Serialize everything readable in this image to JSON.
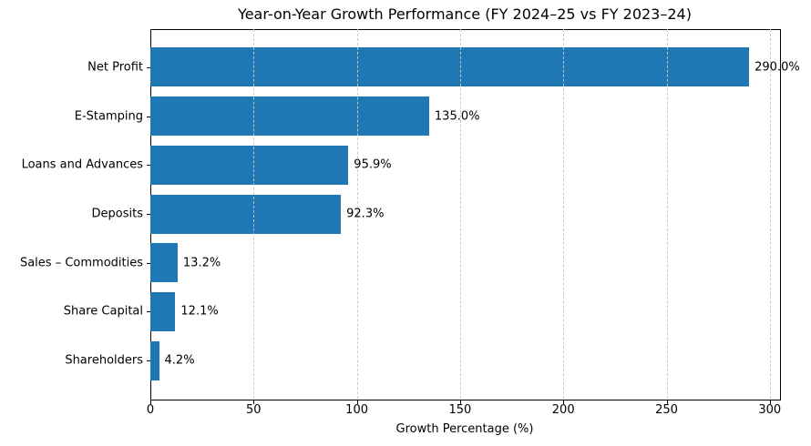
{
  "chart_data": {
    "type": "bar",
    "orientation": "horizontal",
    "title": "Year-on-Year Growth Performance (FY 2024–25 vs FY 2023–24)",
    "xlabel": "Growth Percentage (%)",
    "ylabel": "",
    "categories": [
      "Net Profit",
      "E-Stamping",
      "Loans and Advances",
      "Deposits",
      "Sales – Commodities",
      "Share Capital",
      "Shareholders"
    ],
    "values": [
      290.0,
      135.0,
      95.9,
      92.3,
      13.2,
      12.1,
      4.2
    ],
    "value_labels": [
      "290.0%",
      "135.0%",
      "95.9%",
      "92.3%",
      "13.2%",
      "12.1%",
      "4.2%"
    ],
    "x_ticks": [
      0,
      50,
      100,
      150,
      200,
      250,
      300
    ],
    "xlim": [
      0,
      304.5
    ],
    "grid": "vertical-dashed-over-bars",
    "legend": "none",
    "bar_color": "#1f77b4",
    "grid_color": "#c9c9c9",
    "spine_color": "#000000",
    "background": "#ffffff"
  }
}
